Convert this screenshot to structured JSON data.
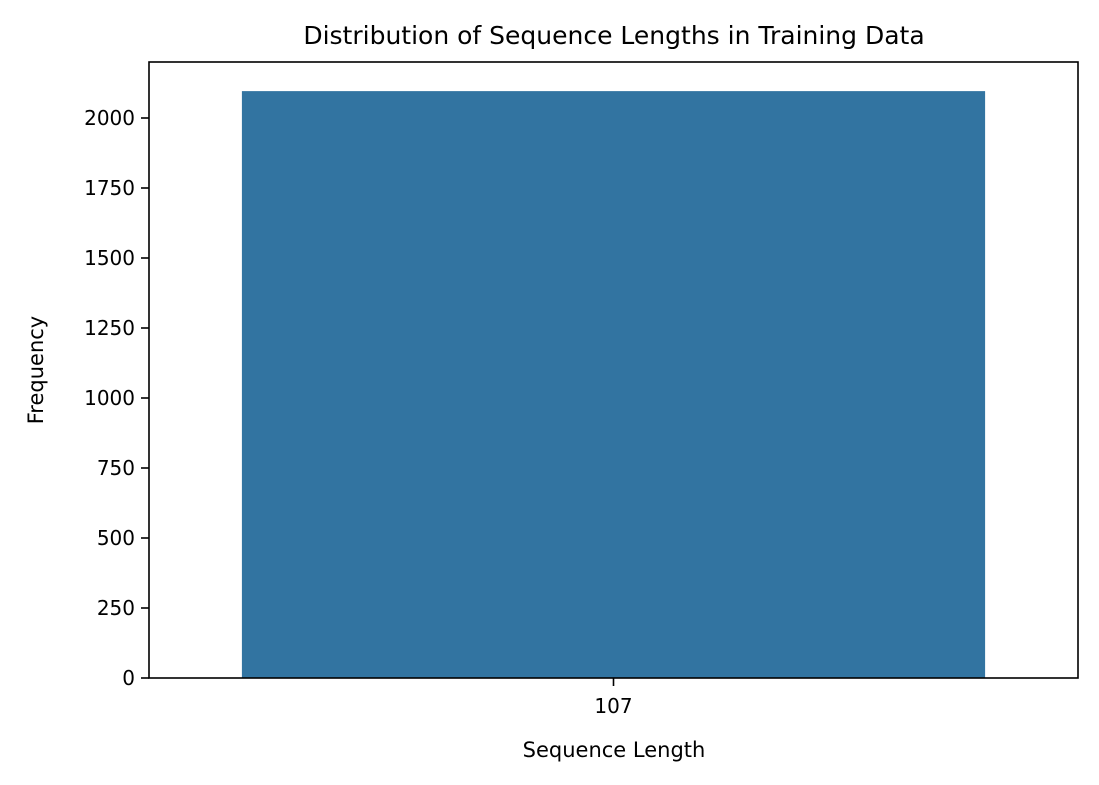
{
  "chart_data": {
    "type": "bar",
    "title": "Distribution of Sequence Lengths in Training Data",
    "xlabel": "Sequence Length",
    "ylabel": "Frequency",
    "categories": [
      "107"
    ],
    "values": [
      2096
    ],
    "ylim": [
      0,
      2200
    ],
    "yticks": [
      0,
      250,
      500,
      750,
      1000,
      1250,
      1500,
      1750,
      2000
    ],
    "ytick_labels": [
      "0",
      "250",
      "500",
      "750",
      "1000",
      "1250",
      "1500",
      "1750",
      "2000"
    ],
    "grid": false,
    "legend": "none",
    "bar_color": "#3274a1"
  }
}
